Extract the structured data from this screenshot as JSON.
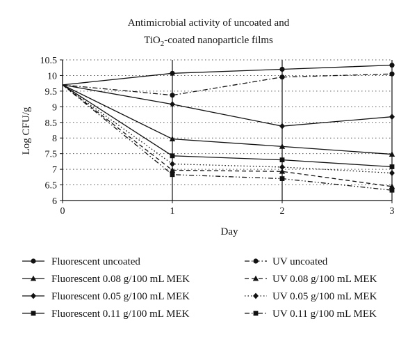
{
  "chart_data": {
    "type": "line",
    "title_line1": "Antimicrobial activity of uncoated and",
    "title_line2_prefix": "TiO",
    "title_line2_sub": "2",
    "title_line2_suffix": "-coated nanoparticle films",
    "xlabel": "Day",
    "ylabel": "Log CFU/g",
    "xlim": [
      0,
      3
    ],
    "ylim": [
      6,
      10.5
    ],
    "x": [
      0,
      1,
      2,
      3
    ],
    "x_ticks": [
      "0",
      "1",
      "2",
      "3"
    ],
    "y_ticks": [
      "6",
      "6.5",
      "7",
      "7.5",
      "8",
      "8.5",
      "9",
      "9.5",
      "10",
      "10.5"
    ],
    "grid": "dotted horizontal, solid vertical at day ticks",
    "legend_position": "bottom",
    "series": [
      {
        "name": "Fluorescent uncoated",
        "values": [
          9.7,
          10.07,
          10.2,
          10.33
        ],
        "dash": "solid",
        "marker": "circle"
      },
      {
        "name": "Fluorescent 0.08 g/100 mL MEK",
        "values": [
          9.7,
          7.97,
          7.73,
          7.48
        ],
        "dash": "solid",
        "marker": "triangle"
      },
      {
        "name": "Fluorescent 0.05 g/100 mL MEK",
        "values": [
          9.7,
          9.08,
          8.38,
          8.68
        ],
        "dash": "solid",
        "marker": "diamond"
      },
      {
        "name": "Fluorescent 0.11 g/100 mL MEK",
        "values": [
          9.7,
          7.43,
          7.3,
          7.08
        ],
        "dash": "solid",
        "marker": "square"
      },
      {
        "name": "UV uncoated",
        "values": [
          9.7,
          9.37,
          9.95,
          10.05
        ],
        "dash": "dashdot",
        "marker": "circle"
      },
      {
        "name": "UV 0.08 g/100 mL MEK",
        "values": [
          9.7,
          6.97,
          6.93,
          6.45
        ],
        "dash": "dashed",
        "marker": "triangle"
      },
      {
        "name": "UV 0.05 g/100 mL MEK",
        "values": [
          9.7,
          7.17,
          7.07,
          6.88
        ],
        "dash": "dotted",
        "marker": "diamond"
      },
      {
        "name": "UV 0.11 g/100 mL MEK",
        "values": [
          9.7,
          6.83,
          6.7,
          6.33
        ],
        "dash": "dashdotdot",
        "marker": "square"
      }
    ],
    "colors": {
      "line": "#111111",
      "grid": "#555555",
      "background": "#ffffff"
    }
  }
}
